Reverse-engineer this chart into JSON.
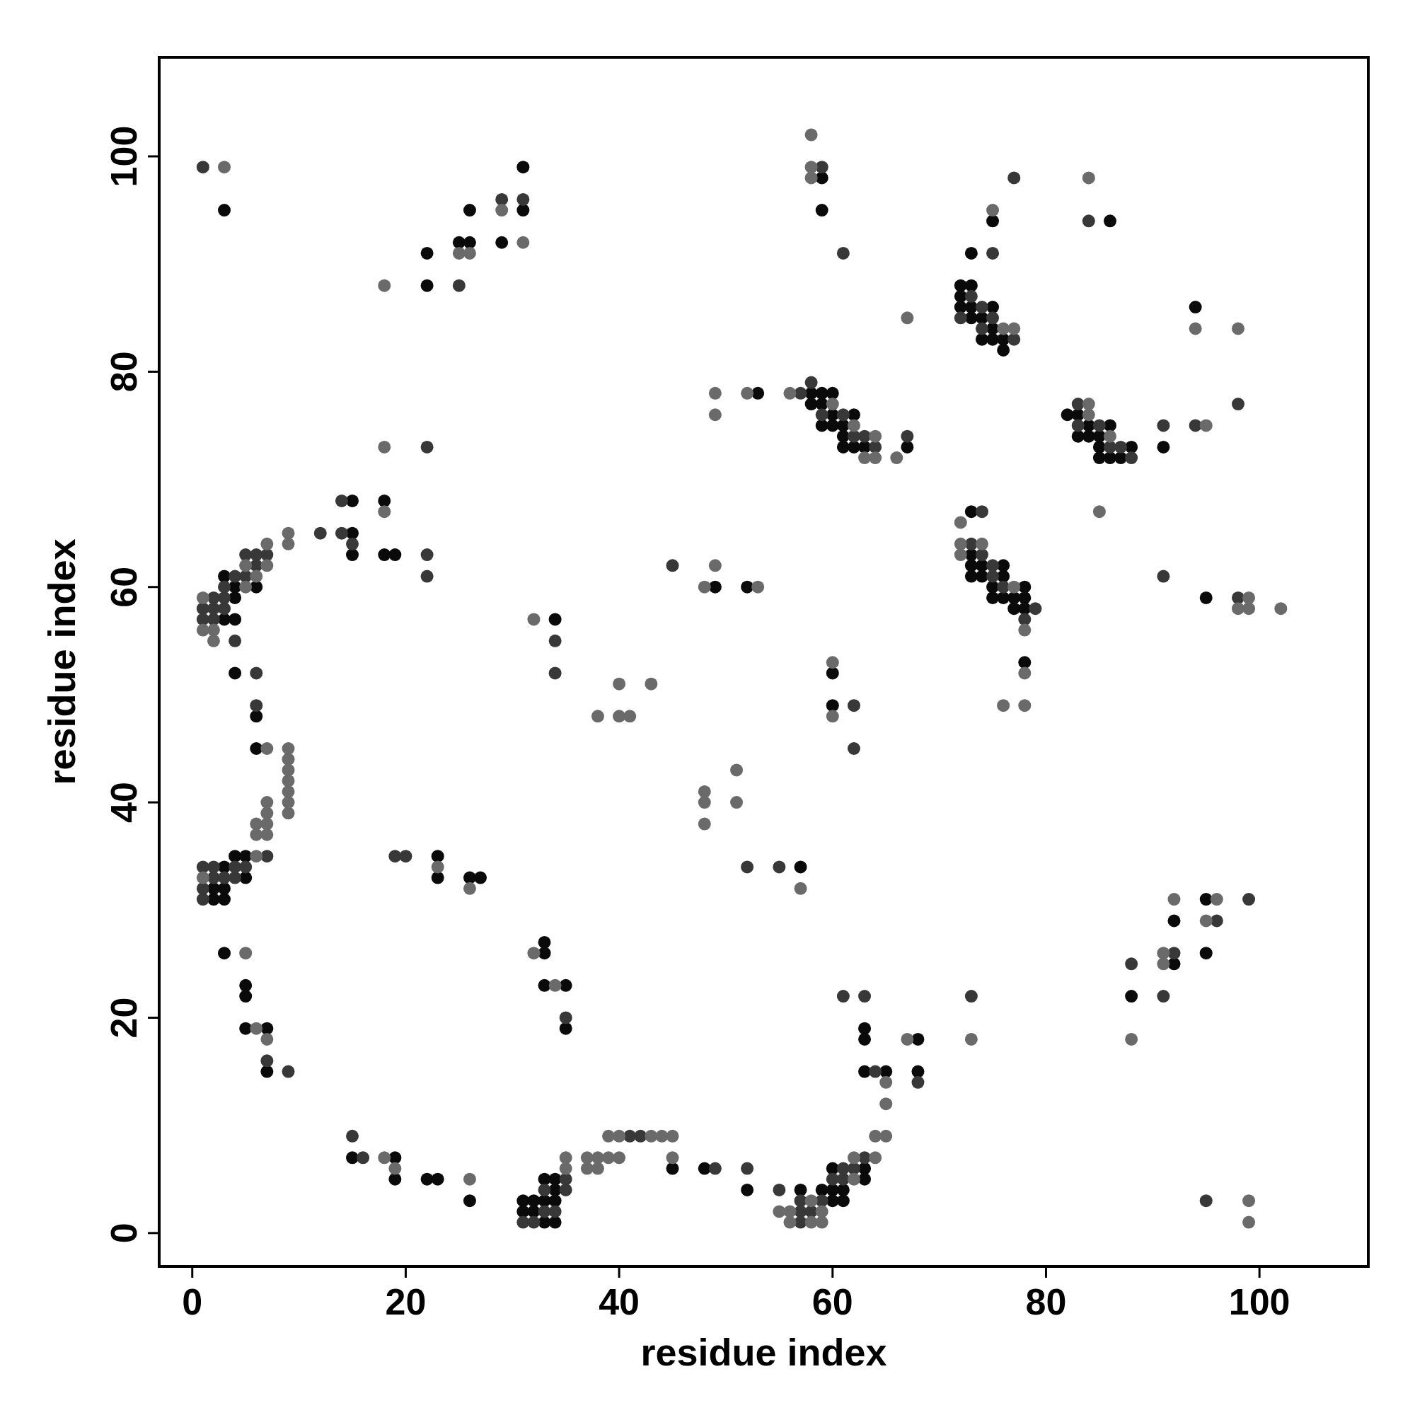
{
  "chart_data": {
    "type": "scatter",
    "xlabel": "residue index",
    "ylabel": "residue index",
    "xlim": [
      -3.1,
      110.2
    ],
    "ylim": [
      -3.1,
      109.2
    ],
    "xticks": [
      0,
      20,
      40,
      60,
      80,
      100
    ],
    "yticks": [
      0,
      20,
      40,
      60,
      80,
      100
    ],
    "marker": "circle",
    "grid": false,
    "series": [
      {
        "color": "#0a0a0a",
        "x": [
          3,
          22,
          22,
          25,
          26,
          26,
          29,
          31,
          31,
          15,
          15,
          15,
          18,
          18,
          19,
          3,
          3,
          4,
          4,
          4,
          6,
          4,
          6,
          6,
          2,
          2,
          3,
          3,
          3,
          4,
          5,
          5,
          3,
          5,
          5,
          5,
          7,
          7,
          23,
          23,
          26,
          27,
          15,
          19,
          19,
          22,
          23,
          26,
          31,
          31,
          32,
          32,
          33,
          33,
          33,
          34,
          34,
          34,
          34,
          33,
          33,
          33,
          35,
          35,
          34,
          45,
          48,
          52,
          49,
          52,
          53,
          57,
          57,
          59,
          60,
          60,
          60,
          61,
          61,
          63,
          63,
          65,
          63,
          63,
          63,
          68,
          68,
          60,
          60,
          59,
          59,
          58,
          58,
          59,
          59,
          59,
          60,
          60,
          60,
          61,
          61,
          61,
          62,
          62,
          63,
          67,
          73,
          75,
          72,
          72,
          72,
          73,
          73,
          73,
          74,
          74,
          75,
          75,
          75,
          76,
          76,
          86,
          94,
          82,
          83,
          83,
          84,
          84,
          85,
          85,
          85,
          86,
          86,
          87,
          88,
          91,
          73,
          73,
          73,
          73,
          74,
          74,
          75,
          75,
          76,
          76,
          76,
          77,
          77,
          78,
          78,
          78,
          78,
          95,
          88,
          92,
          92,
          95,
          95
        ],
        "values": [
          95,
          91,
          88,
          92,
          95,
          92,
          92,
          99,
          95,
          68,
          65,
          63,
          68,
          63,
          63,
          61,
          57,
          60,
          59,
          57,
          60,
          52,
          48,
          45,
          32,
          31,
          34,
          32,
          31,
          35,
          35,
          33,
          26,
          23,
          22,
          19,
          19,
          15,
          35,
          33,
          33,
          33,
          7,
          7,
          5,
          5,
          5,
          3,
          3,
          2,
          3,
          2,
          5,
          3,
          1,
          5,
          4,
          3,
          1,
          27,
          26,
          23,
          23,
          19,
          57,
          6,
          6,
          4,
          60,
          60,
          78,
          34,
          4,
          4,
          6,
          4,
          3,
          4,
          3,
          6,
          5,
          15,
          15,
          19,
          18,
          18,
          15,
          52,
          49,
          98,
          95,
          78,
          77,
          78,
          77,
          75,
          78,
          76,
          75,
          75,
          74,
          73,
          76,
          73,
          73,
          73,
          91,
          94,
          88,
          87,
          86,
          88,
          86,
          85,
          85,
          83,
          86,
          84,
          83,
          83,
          82,
          94,
          86,
          76,
          76,
          74,
          75,
          74,
          74,
          73,
          72,
          75,
          72,
          72,
          73,
          73,
          67,
          63,
          62,
          61,
          62,
          61,
          60,
          59,
          62,
          61,
          59,
          59,
          58,
          60,
          59,
          58,
          53,
          59,
          22,
          29,
          25,
          31,
          26
        ]
      },
      {
        "color": "#383838",
        "x": [
          1,
          25,
          29,
          31,
          22,
          14,
          14,
          15,
          12,
          22,
          22,
          1,
          1,
          2,
          2,
          2,
          3,
          3,
          3,
          4,
          4,
          5,
          5,
          6,
          6,
          7,
          6,
          6,
          7,
          1,
          1,
          1,
          2,
          2,
          3,
          4,
          4,
          5,
          7,
          9,
          19,
          20,
          15,
          16,
          31,
          32,
          33,
          33,
          34,
          35,
          35,
          35,
          34,
          34,
          41,
          42,
          49,
          52,
          45,
          52,
          55,
          55,
          57,
          57,
          57,
          58,
          59,
          60,
          61,
          61,
          62,
          63,
          64,
          61,
          63,
          68,
          73,
          62,
          62,
          59,
          61,
          57,
          58,
          59,
          61,
          62,
          63,
          64,
          67,
          75,
          77,
          72,
          73,
          74,
          74,
          75,
          77,
          84,
          98,
          83,
          83,
          85,
          86,
          87,
          88,
          91,
          94,
          73,
          74,
          74,
          75,
          75,
          76,
          78,
          79,
          91,
          98,
          88,
          91,
          92,
          96,
          99,
          95
        ],
        "values": [
          99,
          88,
          96,
          96,
          73,
          68,
          65,
          64,
          65,
          63,
          61,
          58,
          57,
          59,
          58,
          57,
          60,
          59,
          58,
          61,
          55,
          63,
          61,
          63,
          62,
          63,
          52,
          49,
          35,
          34,
          32,
          31,
          34,
          33,
          33,
          34,
          33,
          34,
          16,
          15,
          35,
          35,
          9,
          7,
          1,
          1,
          4,
          2,
          2,
          5,
          4,
          20,
          55,
          52,
          9,
          9,
          6,
          6,
          62,
          34,
          34,
          4,
          3,
          2,
          1,
          2,
          3,
          5,
          6,
          5,
          6,
          7,
          15,
          22,
          22,
          14,
          22,
          49,
          45,
          99,
          91,
          78,
          79,
          76,
          76,
          74,
          74,
          73,
          74,
          91,
          98,
          85,
          87,
          86,
          84,
          85,
          83,
          94,
          77,
          77,
          75,
          75,
          73,
          73,
          72,
          75,
          75,
          64,
          67,
          63,
          62,
          61,
          60,
          57,
          58,
          61,
          59,
          25,
          22,
          26,
          29,
          31,
          3
        ]
      },
      {
        "color": "#6a6a6a",
        "x": [
          3,
          18,
          25,
          26,
          29,
          31,
          18,
          9,
          9,
          18,
          1,
          1,
          2,
          2,
          5,
          5,
          6,
          7,
          7,
          7,
          9,
          9,
          9,
          9,
          9,
          9,
          9,
          7,
          7,
          7,
          7,
          6,
          6,
          6,
          1,
          5,
          6,
          7,
          23,
          26,
          18,
          19,
          26,
          35,
          35,
          32,
          34,
          32,
          38,
          40,
          40,
          41,
          43,
          37,
          37,
          38,
          38,
          39,
          39,
          40,
          40,
          43,
          44,
          45,
          45,
          48,
          49,
          53,
          49,
          49,
          52,
          48,
          48,
          48,
          51,
          51,
          57,
          55,
          56,
          56,
          58,
          58,
          59,
          59,
          62,
          62,
          64,
          64,
          65,
          65,
          65,
          67,
          73,
          60,
          60,
          58,
          58,
          58,
          56,
          60,
          62,
          63,
          64,
          64,
          66,
          67,
          75,
          76,
          77,
          84,
          94,
          98,
          84,
          84,
          86,
          95,
          85,
          72,
          72,
          72,
          74,
          77,
          78,
          78,
          76,
          78,
          98,
          99,
          99,
          102,
          88,
          91,
          91,
          92,
          95,
          96,
          99,
          99
        ],
        "values": [
          99,
          88,
          91,
          91,
          95,
          92,
          73,
          65,
          64,
          67,
          59,
          56,
          56,
          55,
          60,
          62,
          61,
          64,
          62,
          45,
          45,
          44,
          43,
          42,
          41,
          40,
          39,
          40,
          39,
          38,
          37,
          38,
          37,
          35,
          33,
          26,
          19,
          18,
          34,
          32,
          7,
          6,
          5,
          7,
          6,
          26,
          23,
          57,
          48,
          51,
          48,
          48,
          51,
          7,
          6,
          7,
          6,
          9,
          7,
          9,
          7,
          9,
          9,
          9,
          7,
          60,
          62,
          60,
          78,
          76,
          78,
          41,
          40,
          38,
          43,
          40,
          32,
          2,
          2,
          1,
          3,
          1,
          2,
          1,
          7,
          5,
          9,
          7,
          9,
          12,
          14,
          18,
          18,
          53,
          48,
          102,
          99,
          98,
          78,
          77,
          75,
          72,
          74,
          72,
          72,
          85,
          95,
          84,
          84,
          98,
          84,
          84,
          77,
          76,
          74,
          75,
          67,
          66,
          64,
          63,
          64,
          60,
          56,
          52,
          49,
          49,
          58,
          59,
          58,
          58,
          18,
          26,
          25,
          31,
          29,
          31,
          3,
          1
        ]
      }
    ]
  }
}
